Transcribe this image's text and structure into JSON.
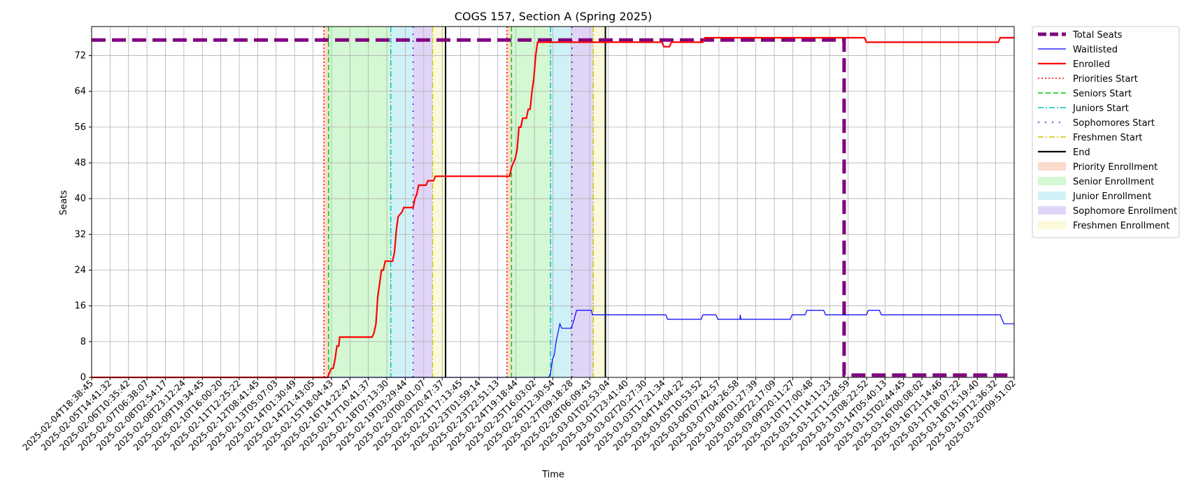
{
  "chart_data": {
    "type": "line",
    "title": "COGS 157, Section A (Spring 2025)",
    "xlabel": "Time",
    "ylabel": "Seats",
    "ylim": [
      0,
      78.5
    ],
    "yticks": [
      0,
      8,
      16,
      24,
      32,
      40,
      48,
      56,
      64,
      72
    ],
    "x_range_days": [
      0,
      49.65
    ],
    "xtick_labels": [
      "2025-02-04T18:38:45",
      "2025-02-05T14:41:32",
      "2025-02-06T10:35:42",
      "2025-02-07T06:38:07",
      "2025-02-08T02:54:17",
      "2025-02-08T23:12:24",
      "2025-02-09T19:34:45",
      "2025-02-10T16:00:20",
      "2025-02-11T12:25:22",
      "2025-02-12T08:41:45",
      "2025-02-13T05:07:03",
      "2025-02-14T01:30:49",
      "2025-02-14T21:43:05",
      "2025-02-15T18:04:43",
      "2025-02-16T14:22:47",
      "2025-02-17T10:41:37",
      "2025-02-18T07:13:30",
      "2025-02-19T03:29:44",
      "2025-02-20T00:01:07",
      "2025-02-20T20:47:37",
      "2025-02-21T17:13:45",
      "2025-02-23T01:59:14",
      "2025-02-23T22:51:13",
      "2025-02-24T19:18:44",
      "2025-02-25T16:03:02",
      "2025-02-26T12:30:54",
      "2025-02-27T09:18:28",
      "2025-02-28T06:09:43",
      "2025-03-01T02:53:04",
      "2025-03-01T23:41:40",
      "2025-03-02T20:27:30",
      "2025-03-03T17:21:34",
      "2025-03-04T14:04:22",
      "2025-03-05T10:53:52",
      "2025-03-06T07:42:57",
      "2025-03-07T04:26:58",
      "2025-03-08T01:27:39",
      "2025-03-08T22:17:09",
      "2025-03-09T20:11:27",
      "2025-03-10T17:00:48",
      "2025-03-11T14:11:23",
      "2025-03-12T11:28:59",
      "2025-03-13T08:22:52",
      "2025-03-14T05:40:13",
      "2025-03-15T02:44:45",
      "2025-03-16T00:08:02",
      "2025-03-16T21:14:46",
      "2025-03-17T18:07:22",
      "2025-03-18T15:19:40",
      "2025-03-19T12:36:32",
      "2025-03-20T09:51:02"
    ],
    "series": [
      {
        "name": "Total Seats",
        "color": "#800080",
        "style": "dashed-thick",
        "points": [
          [
            0,
            75.5
          ],
          [
            40.5,
            75.5
          ],
          [
            40.5,
            0.5
          ],
          [
            49.65,
            0.5
          ]
        ]
      },
      {
        "name": "Waitlisted",
        "color": "#0000ff",
        "style": "solid-thin",
        "points": [
          [
            0,
            0
          ],
          [
            24.6,
            0
          ],
          [
            24.7,
            1
          ],
          [
            24.8,
            4
          ],
          [
            24.9,
            5
          ],
          [
            25.0,
            8
          ],
          [
            25.1,
            10
          ],
          [
            25.2,
            12
          ],
          [
            25.3,
            11
          ],
          [
            25.8,
            11
          ],
          [
            25.9,
            12
          ],
          [
            26.1,
            15
          ],
          [
            26.9,
            15
          ],
          [
            26.95,
            14
          ],
          [
            30.9,
            14
          ],
          [
            31.0,
            13
          ],
          [
            32.8,
            13
          ],
          [
            32.9,
            14
          ],
          [
            33.6,
            14
          ],
          [
            33.7,
            13
          ],
          [
            34.9,
            13
          ],
          [
            34.9,
            14
          ],
          [
            34.95,
            13
          ],
          [
            37.6,
            13
          ],
          [
            37.7,
            14
          ],
          [
            38.4,
            14
          ],
          [
            38.5,
            15
          ],
          [
            39.4,
            15
          ],
          [
            39.5,
            14
          ],
          [
            41.7,
            14
          ],
          [
            41.8,
            15
          ],
          [
            42.4,
            15
          ],
          [
            42.5,
            14
          ],
          [
            48.9,
            14
          ],
          [
            49.0,
            13
          ],
          [
            49.1,
            12
          ],
          [
            49.65,
            12
          ]
        ]
      },
      {
        "name": "Enrolled",
        "color": "#ff0000",
        "style": "solid",
        "points": [
          [
            0,
            0
          ],
          [
            12.7,
            0
          ],
          [
            12.8,
            1
          ],
          [
            12.9,
            2
          ],
          [
            13.0,
            2
          ],
          [
            13.1,
            4
          ],
          [
            13.2,
            7
          ],
          [
            13.3,
            7
          ],
          [
            13.35,
            9
          ],
          [
            15.1,
            9
          ],
          [
            15.2,
            10
          ],
          [
            15.3,
            12
          ],
          [
            15.4,
            18
          ],
          [
            15.5,
            21
          ],
          [
            15.6,
            24
          ],
          [
            15.7,
            24
          ],
          [
            15.8,
            26
          ],
          [
            16.2,
            26
          ],
          [
            16.3,
            28
          ],
          [
            16.4,
            33
          ],
          [
            16.5,
            36
          ],
          [
            16.7,
            37
          ],
          [
            16.8,
            38
          ],
          [
            17.3,
            38
          ],
          [
            17.4,
            40
          ],
          [
            17.5,
            41
          ],
          [
            17.6,
            43
          ],
          [
            18.0,
            43
          ],
          [
            18.1,
            44
          ],
          [
            18.4,
            44
          ],
          [
            18.5,
            45
          ],
          [
            22.5,
            45
          ],
          [
            22.6,
            47
          ],
          [
            22.7,
            48
          ],
          [
            22.8,
            49
          ],
          [
            22.9,
            51
          ],
          [
            23.0,
            56
          ],
          [
            23.1,
            56
          ],
          [
            23.2,
            58
          ],
          [
            23.4,
            58
          ],
          [
            23.5,
            60
          ],
          [
            23.6,
            60
          ],
          [
            23.7,
            64
          ],
          [
            23.8,
            67
          ],
          [
            23.9,
            72
          ],
          [
            24.0,
            75
          ],
          [
            30.7,
            75
          ],
          [
            30.8,
            74
          ],
          [
            31.1,
            74
          ],
          [
            31.2,
            75
          ],
          [
            32.9,
            75
          ],
          [
            33.0,
            76
          ],
          [
            41.6,
            76
          ],
          [
            41.7,
            75
          ],
          [
            48.8,
            75
          ],
          [
            48.9,
            76
          ],
          [
            49.65,
            76
          ]
        ]
      }
    ],
    "phases": [
      {
        "start": 12.5,
        "end": 12.75,
        "name": "Priority Enrollment",
        "color": "#f4a582"
      },
      {
        "start": 12.75,
        "end": 16.1,
        "name": "Senior Enrollment",
        "color": "#90ee90"
      },
      {
        "start": 16.1,
        "end": 17.3,
        "name": "Junior Enrollment",
        "color": "#87dbe8"
      },
      {
        "start": 17.3,
        "end": 18.35,
        "name": "Sophomore Enrollment",
        "color": "#b595eb"
      },
      {
        "start": 18.35,
        "end": 19.05,
        "name": "Freshmen Enrollment",
        "color": "#f2f2a6"
      },
      {
        "start": 22.35,
        "end": 22.6,
        "name": "Priority Enrollment",
        "color": "#f4a582"
      },
      {
        "start": 22.6,
        "end": 24.7,
        "name": "Senior Enrollment",
        "color": "#90ee90"
      },
      {
        "start": 24.7,
        "end": 25.85,
        "name": "Junior Enrollment",
        "color": "#87dbe8"
      },
      {
        "start": 25.85,
        "end": 27.0,
        "name": "Sophomore Enrollment",
        "color": "#b595eb"
      },
      {
        "start": 27.0,
        "end": 27.65,
        "name": "Freshmen Enrollment",
        "color": "#f2f2a6"
      }
    ],
    "markers": [
      {
        "name": "Priorities Start",
        "color": "#ff0000",
        "style": "dotted",
        "x": [
          12.5,
          22.35
        ]
      },
      {
        "name": "Seniors Start",
        "color": "#00cc00",
        "style": "dashed",
        "x": [
          12.75,
          22.6
        ]
      },
      {
        "name": "Juniors Start",
        "color": "#00bfbf",
        "style": "dashdot",
        "x": [
          16.1,
          24.7
        ]
      },
      {
        "name": "Sophomores Start",
        "color": "#5500cc",
        "style": "loosedot",
        "x": [
          17.3,
          25.85
        ]
      },
      {
        "name": "Freshmen Start",
        "color": "#d4c400",
        "style": "dashdot",
        "x": [
          18.35,
          27.0
        ]
      },
      {
        "name": "End",
        "color": "#000000",
        "style": "solid",
        "x": [
          19.05,
          27.65
        ]
      }
    ],
    "legend": {
      "placement": "outside-top-right",
      "entries": [
        {
          "label": "Total Seats",
          "kind": "line",
          "color": "#800080",
          "style": "dashed-thick"
        },
        {
          "label": "Waitlisted",
          "kind": "line",
          "color": "#0000ff",
          "style": "solid-thin"
        },
        {
          "label": "Enrolled",
          "kind": "line",
          "color": "#ff0000",
          "style": "solid"
        },
        {
          "label": "Priorities Start",
          "kind": "line",
          "color": "#ff0000",
          "style": "dotted"
        },
        {
          "label": "Seniors Start",
          "kind": "line",
          "color": "#00cc00",
          "style": "dashed"
        },
        {
          "label": "Juniors Start",
          "kind": "line",
          "color": "#00bfbf",
          "style": "dashdot"
        },
        {
          "label": "Sophomores Start",
          "kind": "line",
          "color": "#5500cc",
          "style": "loosedot"
        },
        {
          "label": "Freshmen Start",
          "kind": "line",
          "color": "#d4c400",
          "style": "dashdot"
        },
        {
          "label": "End",
          "kind": "line",
          "color": "#000000",
          "style": "solid"
        },
        {
          "label": "Priority Enrollment",
          "kind": "patch",
          "color": "#f4a582"
        },
        {
          "label": "Senior Enrollment",
          "kind": "patch",
          "color": "#90ee90"
        },
        {
          "label": "Junior Enrollment",
          "kind": "patch",
          "color": "#87dbe8"
        },
        {
          "label": "Sophomore Enrollment",
          "kind": "patch",
          "color": "#b595eb"
        },
        {
          "label": "Freshmen Enrollment",
          "kind": "patch",
          "color": "#f2f2a6"
        }
      ]
    },
    "grid": true
  }
}
